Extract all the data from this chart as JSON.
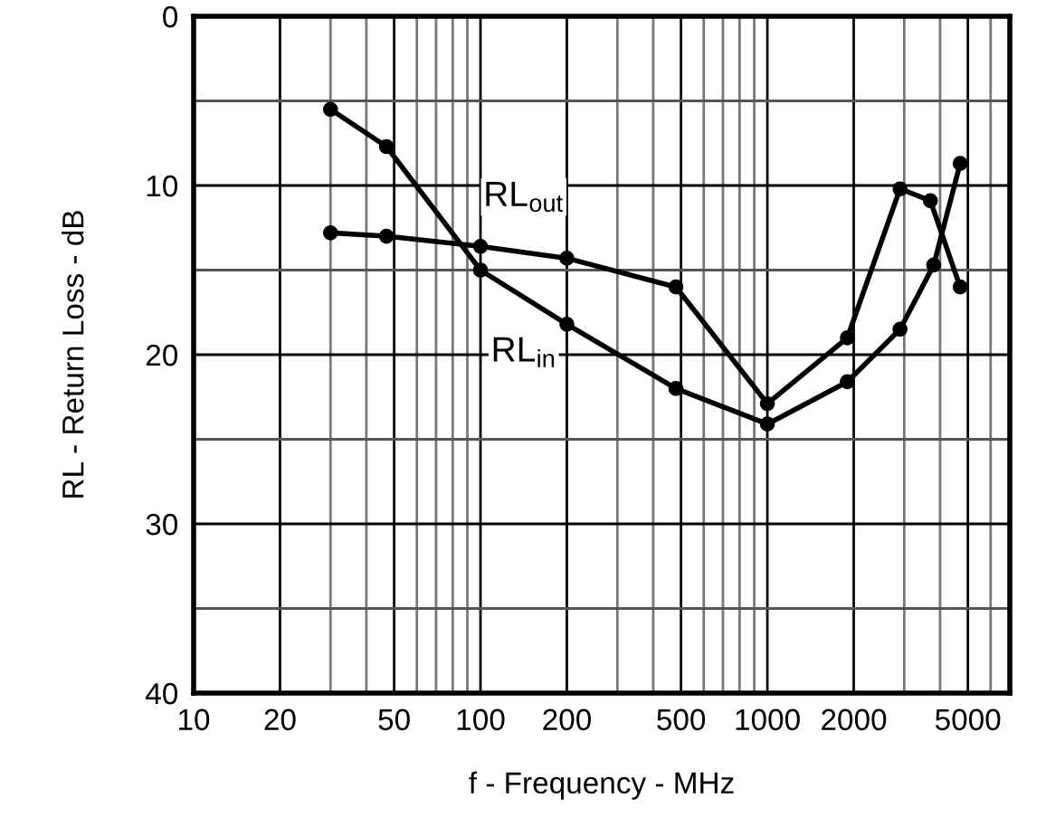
{
  "chart_data": {
    "type": "line",
    "xlabel": "f - Frequency - MHz",
    "ylabel": "RL - Return Loss - dB",
    "log": "x",
    "xlim": [
      10,
      7000
    ],
    "xticks": [
      10,
      20,
      50,
      100,
      200,
      500,
      1000,
      2000,
      5000
    ],
    "ylim": [
      40,
      0
    ],
    "yticks": [
      0,
      10,
      20,
      30,
      40
    ],
    "grid": true,
    "marker": "circle",
    "line_style": "solid",
    "series": [
      {
        "name": "RL$_{in}$",
        "color": "#000000",
        "x": [
          30,
          47,
          100,
          200,
          480,
          1000,
          1900,
          2900,
          3800,
          4700
        ],
        "values": [
          5.5,
          7.7,
          15.0,
          18.2,
          22.0,
          24.1,
          21.6,
          18.5,
          14.7,
          8.7
        ]
      },
      {
        "name": "RL$_{out}$",
        "color": "#000000",
        "x": [
          30,
          47,
          100,
          200,
          480,
          1000,
          1900,
          2900,
          3700,
          4700
        ],
        "values": [
          12.8,
          13.0,
          13.6,
          14.3,
          16.0,
          22.9,
          19.0,
          10.2,
          10.9,
          16.0
        ]
      }
    ]
  }
}
